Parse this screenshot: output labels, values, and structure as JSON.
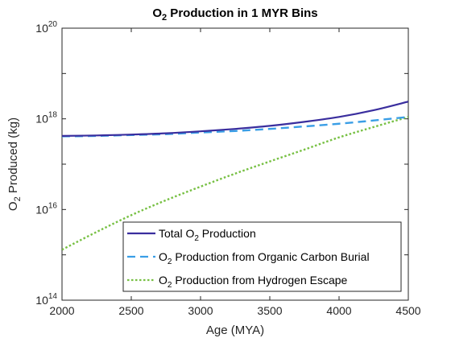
{
  "chart_data": {
    "type": "line",
    "title": "O2 Production in 1 MYR Bins",
    "title_parts": {
      "pre": "O",
      "sub": "2",
      "post": " Production in 1 MYR Bins"
    },
    "xlabel": "Age (MYA)",
    "ylabel": "O2 Produced (kg)",
    "ylabel_parts": {
      "pre": "O",
      "sub": "2",
      "post": " Produced (kg)"
    },
    "xlim": [
      2000,
      4500
    ],
    "ylim": [
      100000000000000.0,
      1e+20
    ],
    "yscale": "log",
    "grid": false,
    "legend_position": "bottom-right",
    "x_ticks": [
      {
        "value": 2000,
        "label": "2000"
      },
      {
        "value": 2500,
        "label": "2500"
      },
      {
        "value": 3000,
        "label": "3000"
      },
      {
        "value": 3500,
        "label": "3500"
      },
      {
        "value": 4000,
        "label": "4000"
      },
      {
        "value": 4500,
        "label": "4500"
      }
    ],
    "y_ticks": [
      {
        "value": 100000000000000.0,
        "base": "10",
        "exp": "14"
      },
      {
        "value": 1e+16,
        "base": "10",
        "exp": "16"
      },
      {
        "value": 1e+18,
        "base": "10",
        "exp": "18"
      },
      {
        "value": 1e+20,
        "base": "10",
        "exp": "20"
      }
    ],
    "x": [
      2000,
      2250,
      2500,
      2750,
      3000,
      3250,
      3500,
      3750,
      4000,
      4250,
      4500
    ],
    "series": [
      {
        "name": "Total O2 Production",
        "name_parts": {
          "pre": "Total O",
          "sub": "2",
          "post": " Production"
        },
        "color": "#3a2e9e",
        "style": "solid",
        "values": [
          4.2e+17,
          4.3e+17,
          4.5e+17,
          4.8e+17,
          5.3e+17,
          6e+17,
          7e+17,
          8.6e+17,
          1.1e+18,
          1.55e+18,
          2.4e+18
        ]
      },
      {
        "name": "O2 Production from Organic Carbon Burial",
        "name_parts": {
          "pre": "O",
          "sub": "2",
          "post": " Production from Organic Carbon Burial"
        },
        "color": "#3a9ee6",
        "style": "dashed",
        "values": [
          4.1e+17,
          4.2e+17,
          4.4e+17,
          4.6e+17,
          5e+17,
          5.4e+17,
          6e+17,
          6.8e+17,
          7.8e+17,
          9.2e+17,
          1.1e+18
        ]
      },
      {
        "name": "O2 Production from Hydrogen Escape",
        "name_parts": {
          "pre": "O",
          "sub": "2",
          "post": " Production from Hydrogen Escape"
        },
        "color": "#77c043",
        "style": "dotted",
        "values": [
          1300000000000000.0,
          3200000000000000.0,
          7500000000000000.0,
          1.6e+16,
          3.2e+16,
          6.2e+16,
          1.15e+17,
          2.1e+17,
          3.9e+17,
          6.6e+17,
          1.1e+18
        ]
      }
    ]
  }
}
